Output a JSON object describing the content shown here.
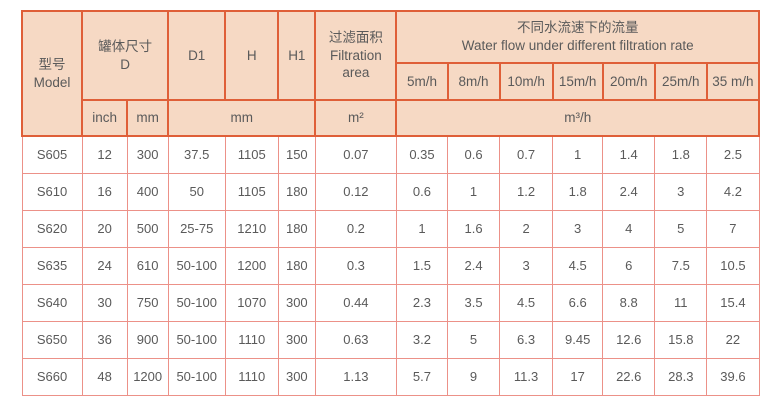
{
  "table": {
    "header": {
      "model": {
        "zh": "型号",
        "en": "Model"
      },
      "tank_size": {
        "zh": "罐体尺寸",
        "en": "D"
      },
      "d1": "D1",
      "h": "H",
      "h1": "H1",
      "filtration": {
        "zh": "过滤面积",
        "en_line1": "Filtration",
        "en_line2": "area"
      },
      "water_flow": {
        "zh": "不同水流速下的流量",
        "en": "Water flow under different filtration rate"
      },
      "rates": [
        "5m/h",
        "8m/h",
        "10m/h",
        "15m/h",
        "20m/h",
        "25m/h",
        "35 m/h"
      ],
      "units": {
        "inch": "inch",
        "mm": "mm",
        "mm_span": "mm",
        "m2": "m²",
        "m3h": "m³/h"
      }
    },
    "rows": [
      {
        "model": "S605",
        "inch": "12",
        "mm": "300",
        "d1": "37.5",
        "h": "1105",
        "h1": "150",
        "area": "0.07",
        "flows": [
          "0.35",
          "0.6",
          "0.7",
          "1",
          "1.4",
          "1.8",
          "2.5"
        ]
      },
      {
        "model": "S610",
        "inch": "16",
        "mm": "400",
        "d1": "50",
        "h": "1105",
        "h1": "180",
        "area": "0.12",
        "flows": [
          "0.6",
          "1",
          "1.2",
          "1.8",
          "2.4",
          "3",
          "4.2"
        ]
      },
      {
        "model": "S620",
        "inch": "20",
        "mm": "500",
        "d1": "25-75",
        "h": "1210",
        "h1": "180",
        "area": "0.2",
        "flows": [
          "1",
          "1.6",
          "2",
          "3",
          "4",
          "5",
          "7"
        ]
      },
      {
        "model": "S635",
        "inch": "24",
        "mm": "610",
        "d1": "50-100",
        "h": "1200",
        "h1": "180",
        "area": "0.3",
        "flows": [
          "1.5",
          "2.4",
          "3",
          "4.5",
          "6",
          "7.5",
          "10.5"
        ]
      },
      {
        "model": "S640",
        "inch": "30",
        "mm": "750",
        "d1": "50-100",
        "h": "1070",
        "h1": "300",
        "area": "0.44",
        "flows": [
          "2.3",
          "3.5",
          "4.5",
          "6.6",
          "8.8",
          "11",
          "15.4"
        ]
      },
      {
        "model": "S650",
        "inch": "36",
        "mm": "900",
        "d1": "50-100",
        "h": "1110",
        "h1": "300",
        "area": "0.63",
        "flows": [
          "3.2",
          "5",
          "6.3",
          "9.45",
          "12.6",
          "15.8",
          "22"
        ]
      },
      {
        "model": "S660",
        "inch": "48",
        "mm": "1200",
        "d1": "50-100",
        "h": "1110",
        "h1": "300",
        "area": "1.13",
        "flows": [
          "5.7",
          "9",
          "11.3",
          "17",
          "22.6",
          "28.3",
          "39.6"
        ]
      }
    ]
  },
  "colors": {
    "header_bg": "#f6d9c4",
    "header_border": "#df5f38",
    "body_border": "#ec9188",
    "text": "#5a5a5a"
  }
}
